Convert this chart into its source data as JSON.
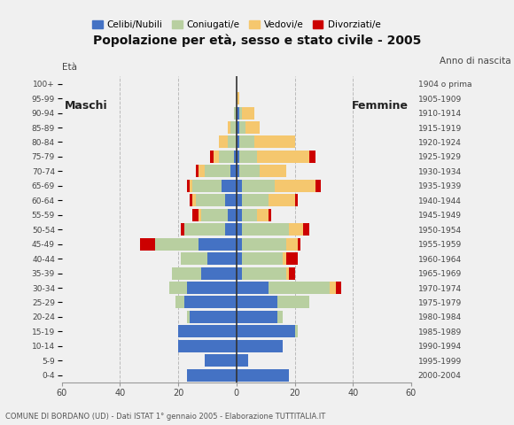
{
  "age_groups": [
    "0-4",
    "5-9",
    "10-14",
    "15-19",
    "20-24",
    "25-29",
    "30-34",
    "35-39",
    "40-44",
    "45-49",
    "50-54",
    "55-59",
    "60-64",
    "65-69",
    "70-74",
    "75-79",
    "80-84",
    "85-89",
    "90-94",
    "95-99",
    "100+"
  ],
  "birth_years": [
    "2000-2004",
    "1995-1999",
    "1990-1994",
    "1985-1989",
    "1980-1984",
    "1975-1979",
    "1970-1974",
    "1965-1969",
    "1960-1964",
    "1955-1959",
    "1950-1954",
    "1945-1949",
    "1940-1944",
    "1935-1939",
    "1930-1934",
    "1925-1929",
    "1920-1924",
    "1915-1919",
    "1910-1914",
    "1905-1909",
    "1904 o prima"
  ],
  "male": {
    "celibe": [
      17,
      11,
      20,
      20,
      16,
      18,
      17,
      12,
      10,
      13,
      4,
      3,
      4,
      5,
      2,
      1,
      0,
      0,
      0,
      0,
      0
    ],
    "coniugato": [
      0,
      0,
      0,
      0,
      1,
      3,
      6,
      10,
      9,
      15,
      14,
      9,
      10,
      10,
      9,
      5,
      3,
      2,
      1,
      0,
      0
    ],
    "vedovo": [
      0,
      0,
      0,
      0,
      0,
      0,
      0,
      0,
      0,
      0,
      0,
      1,
      1,
      1,
      2,
      2,
      3,
      1,
      0,
      0,
      0
    ],
    "divorziato": [
      0,
      0,
      0,
      0,
      0,
      0,
      0,
      0,
      0,
      5,
      1,
      2,
      1,
      1,
      1,
      1,
      0,
      0,
      0,
      0,
      0
    ]
  },
  "female": {
    "nubile": [
      18,
      4,
      16,
      20,
      14,
      14,
      11,
      2,
      2,
      2,
      2,
      2,
      2,
      2,
      1,
      1,
      1,
      1,
      1,
      0,
      0
    ],
    "coniugata": [
      0,
      0,
      0,
      1,
      2,
      11,
      21,
      15,
      14,
      15,
      16,
      5,
      9,
      11,
      7,
      6,
      5,
      2,
      1,
      0,
      0
    ],
    "vedova": [
      0,
      0,
      0,
      0,
      0,
      0,
      2,
      1,
      1,
      4,
      5,
      4,
      9,
      14,
      9,
      18,
      14,
      5,
      4,
      1,
      0
    ],
    "divorziata": [
      0,
      0,
      0,
      0,
      0,
      0,
      2,
      2,
      4,
      1,
      2,
      1,
      1,
      2,
      0,
      2,
      0,
      0,
      0,
      0,
      0
    ]
  },
  "colors": {
    "celibe_nubile": "#4472c4",
    "coniugato_coniugata": "#b8cfa0",
    "vedovo_vedova": "#f5c76e",
    "divorziato_divorziata": "#cc0000"
  },
  "title": "Popolazione per età, sesso e stato civile - 2005",
  "subtitle": "COMUNE DI BORDANO (UD) - Dati ISTAT 1° gennaio 2005 - Elaborazione TUTTITALIA.IT",
  "xlabel_left": "Maschi",
  "xlabel_right": "Femmine",
  "ylabel_left": "Età",
  "ylabel_right": "Anno di nascita",
  "xlim": 60,
  "legend_labels": [
    "Celibi/Nubili",
    "Coniugati/e",
    "Vedovi/e",
    "Divorziati/e"
  ],
  "background_color": "#f0f0f0",
  "grid_color": "#bbbbbb"
}
